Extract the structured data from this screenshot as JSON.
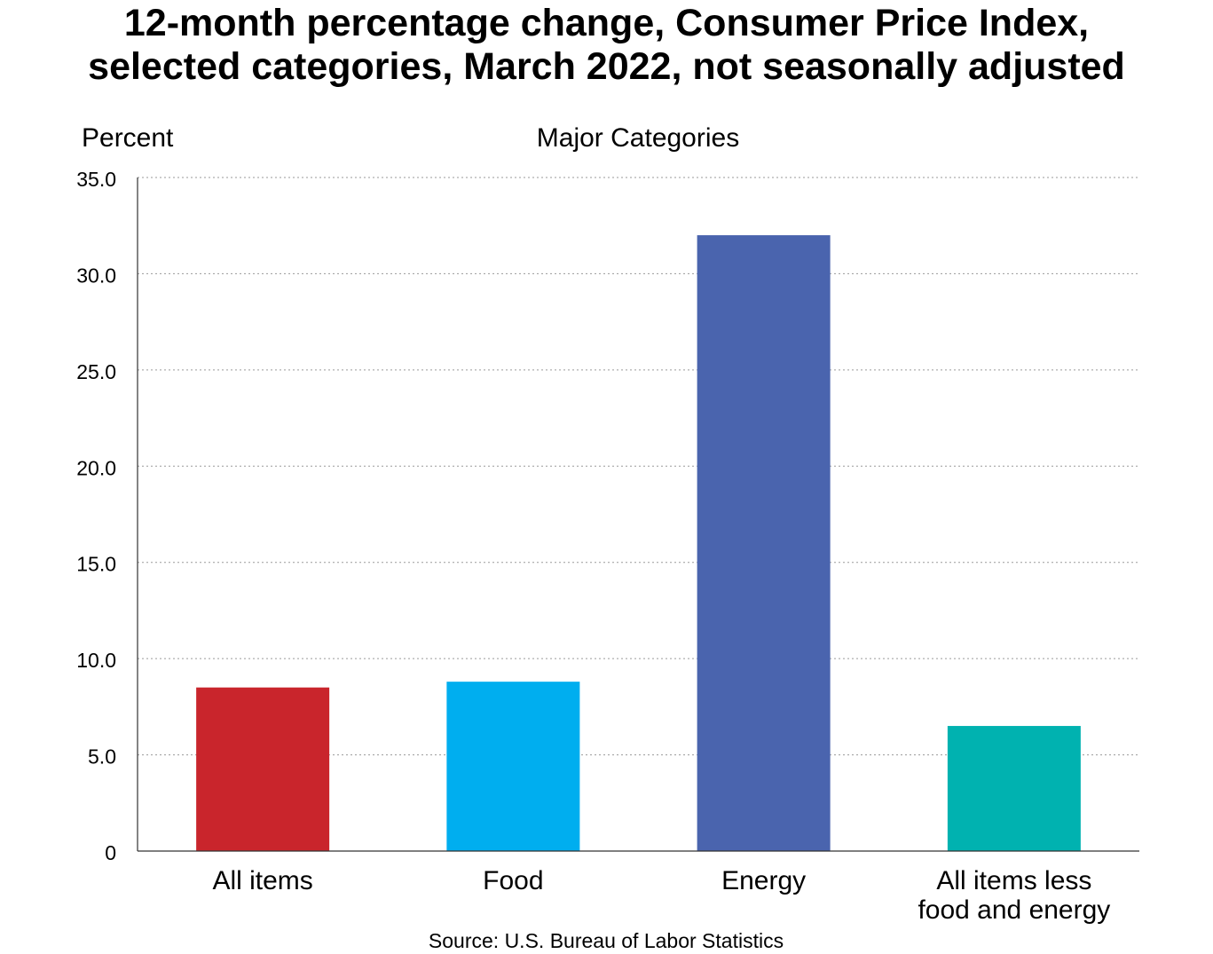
{
  "chart_data": {
    "type": "bar",
    "title": [
      "12-month percentage change, Consumer Price Index,",
      "selected categories, March 2022, not seasonally adjusted"
    ],
    "subtitle": "Major Categories",
    "ylabel": "Percent",
    "xlabel": "",
    "categories": [
      [
        "All items"
      ],
      [
        "Food"
      ],
      [
        "Energy"
      ],
      [
        "All items less",
        "food and energy"
      ]
    ],
    "values": [
      8.5,
      8.8,
      32.0,
      6.5
    ],
    "colors": [
      "#c9252c",
      "#00aeef",
      "#4a64ae",
      "#00b2b0"
    ],
    "ylim": [
      0,
      35
    ],
    "yticks": [
      0,
      5,
      10,
      15,
      20,
      25,
      30,
      35
    ],
    "ytick_labels": [
      "0",
      "5.0",
      "10.0",
      "15.0",
      "20.0",
      "25.0",
      "30.0",
      "35.0"
    ],
    "grid": true,
    "legend": "none",
    "source": "Source: U.S. Bureau of Labor Statistics"
  }
}
